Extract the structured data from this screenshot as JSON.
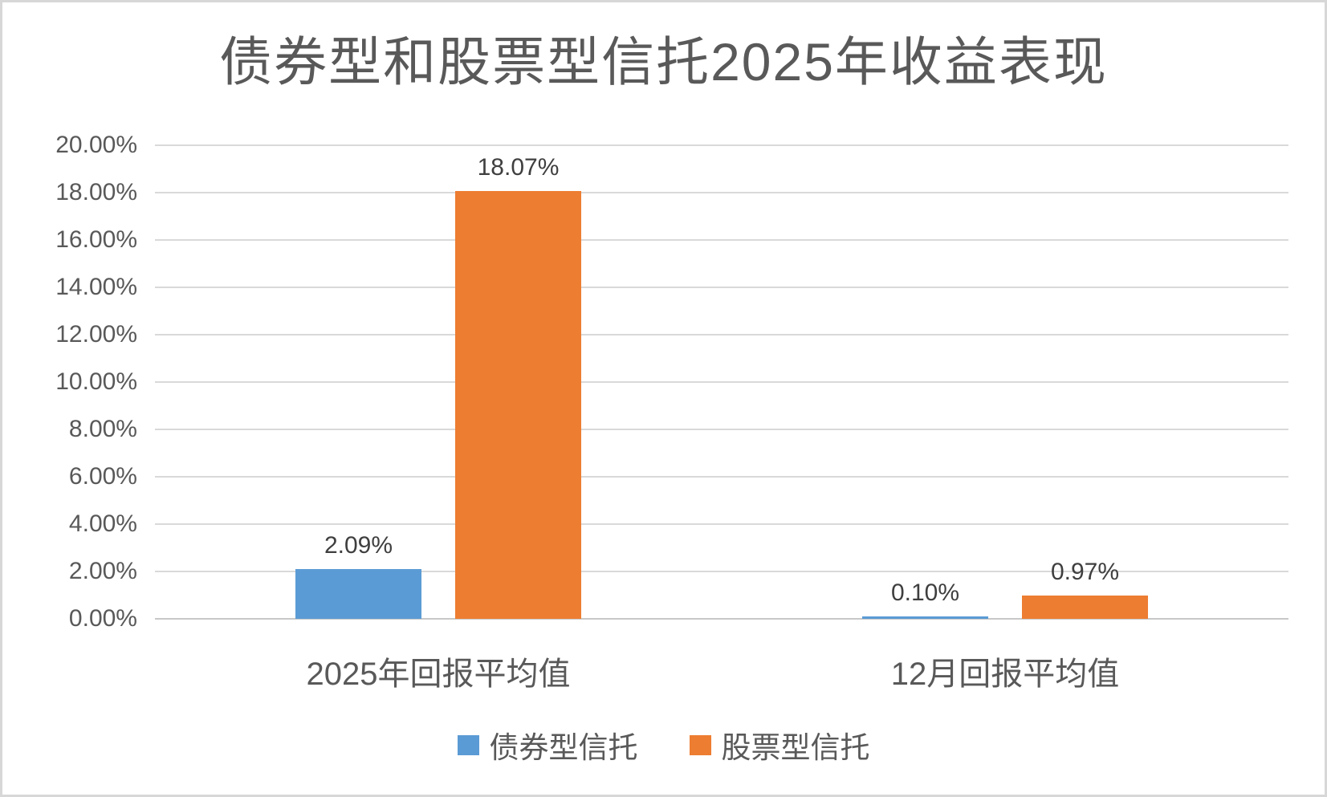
{
  "chart_data": {
    "type": "bar",
    "title": "债券型和股票型信托2025年收益表现",
    "categories": [
      "2025年回报平均值",
      "12月回报平均值"
    ],
    "series": [
      {
        "name": "债券型信托",
        "color": "#5B9BD5",
        "values": [
          2.09,
          0.1
        ],
        "data_labels": [
          "2.09%",
          "0.10%"
        ]
      },
      {
        "name": "股票型信托",
        "color": "#ED7D31",
        "values": [
          18.07,
          0.97
        ],
        "data_labels": [
          "18.07%",
          "0.97%"
        ]
      }
    ],
    "value_unit": "%",
    "xlabel": "",
    "ylabel": "",
    "ylim": [
      0,
      20
    ],
    "ytick_step": 2,
    "ytick_labels": [
      "0.00%",
      "2.00%",
      "4.00%",
      "6.00%",
      "8.00%",
      "10.00%",
      "12.00%",
      "14.00%",
      "16.00%",
      "18.00%",
      "20.00%"
    ],
    "grid": true,
    "legend_position": "bottom",
    "colors": {
      "title_text": "#595959",
      "axis_text": "#595959",
      "data_label_text": "#3f3f3f",
      "gridline": "#d9d9d9",
      "axis_line": "#c8c8c8",
      "background": "#ffffff",
      "border": "#d7d7d7"
    }
  }
}
